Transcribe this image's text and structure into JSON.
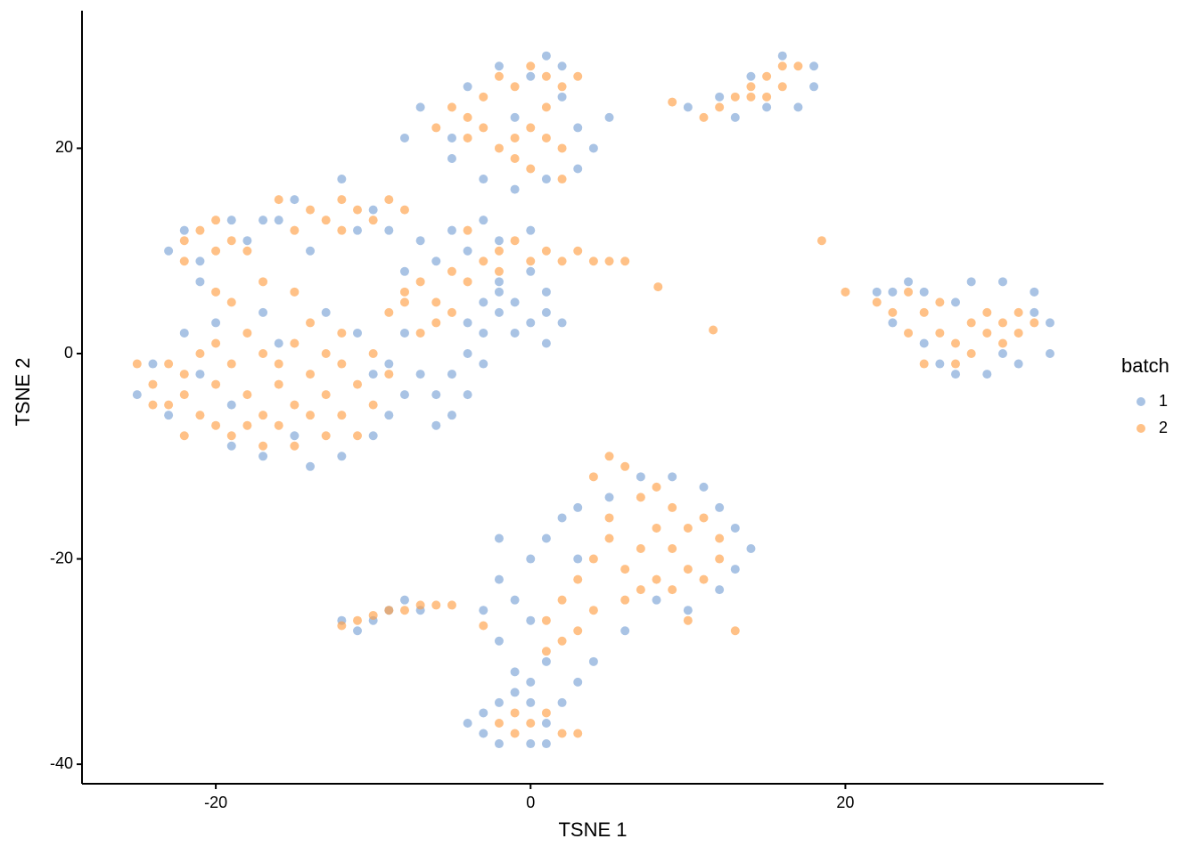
{
  "chart_data": {
    "type": "scatter",
    "x_label": "TSNE 1",
    "y_label": "TSNE 2",
    "legend_title": "batch",
    "legend": "right",
    "grid": false,
    "xlim": [
      -28.5,
      36.4
    ],
    "ylim": [
      -41.9,
      33.4
    ],
    "xticks": [
      -20,
      0,
      20
    ],
    "yticks": [
      -40,
      -20,
      0,
      20
    ],
    "series": [
      {
        "name": "1",
        "color": "#7ba3d6",
        "x": [
          -25,
          -24,
          -23,
          -22,
          -20,
          -19,
          -17,
          -14,
          -12,
          -10,
          -9,
          -8,
          -10,
          -11,
          -13,
          -17,
          -15,
          -19,
          -21,
          -16,
          -6,
          -5,
          -4,
          -3,
          -2,
          -1,
          0,
          1,
          1,
          -2,
          -1,
          -3,
          -4,
          -5,
          -6,
          -2,
          0,
          1,
          -7,
          -4,
          2,
          -3,
          -8,
          -9,
          -22,
          -21,
          -19,
          -23,
          -18,
          -17,
          -21,
          -15,
          -12,
          -11,
          -14,
          -10,
          -16,
          -9,
          -7,
          -5,
          -3,
          -6,
          -8,
          -4,
          -2,
          0,
          -7,
          -5,
          -4,
          -2,
          0,
          1,
          2,
          3,
          3,
          1,
          -1,
          -3,
          -5,
          -8,
          2,
          4,
          5,
          -1,
          12,
          14,
          16,
          18,
          17,
          15,
          13,
          18,
          10,
          22,
          23,
          24,
          25,
          26,
          27,
          28,
          30,
          32,
          33,
          33,
          31,
          29,
          25,
          27,
          32,
          23,
          30,
          -2,
          -2,
          -3,
          -2,
          -1,
          0,
          1,
          0,
          1,
          2,
          3,
          5,
          7,
          9,
          11,
          12,
          13,
          14,
          13,
          12,
          10,
          8,
          6,
          4,
          3,
          -1,
          0,
          3,
          -12,
          -11,
          -9,
          -8,
          -7,
          -10,
          -3,
          -4,
          -3,
          -2,
          0,
          1,
          2,
          -1,
          0,
          -2,
          1
        ],
        "values": [
          -4,
          -1,
          -6,
          2,
          3,
          -9,
          -10,
          -11,
          -10,
          -8,
          -6,
          -4,
          -2,
          2,
          4,
          4,
          -8,
          -5,
          -2,
          1,
          -4,
          -2,
          0,
          2,
          4,
          5,
          3,
          6,
          4,
          6,
          2,
          -1,
          -4,
          -6,
          -7,
          7,
          8,
          1,
          -2,
          3,
          3,
          5,
          2,
          -1,
          12,
          9,
          13,
          10,
          11,
          13,
          7,
          15,
          17,
          12,
          10,
          14,
          13,
          12,
          11,
          12,
          13,
          9,
          8,
          10,
          11,
          12,
          24,
          21,
          26,
          28,
          27,
          29,
          25,
          22,
          18,
          17,
          16,
          17,
          19,
          21,
          28,
          20,
          23,
          23,
          25,
          27,
          29,
          28,
          24,
          24,
          23,
          26,
          24,
          6,
          3,
          7,
          1,
          -1,
          -2,
          7,
          7,
          6,
          3,
          0,
          -1,
          -2,
          6,
          5,
          4,
          6,
          0,
          -18,
          -22,
          -25,
          -28,
          -31,
          -32,
          -30,
          -20,
          -18,
          -16,
          -15,
          -14,
          -12,
          -12,
          -13,
          -15,
          -17,
          -19,
          -21,
          -23,
          -25,
          -24,
          -27,
          -30,
          -32,
          -24,
          -26,
          -20,
          -26,
          -27,
          -25,
          -24,
          -25,
          -26,
          -35,
          -36,
          -37,
          -38,
          -38,
          -36,
          -34,
          -33,
          -34,
          -34,
          -38
        ]
      },
      {
        "name": "2",
        "color": "#ff9f47",
        "x": [
          -25,
          -24,
          -23,
          -22,
          -21,
          -20,
          -19,
          -18,
          -17,
          -16,
          -15,
          -14,
          -13,
          -12,
          -11,
          -10,
          -9,
          -13,
          -15,
          -17,
          -19,
          -17,
          -15,
          -13,
          -11,
          -20,
          -22,
          -23,
          -21,
          -18,
          -16,
          -14,
          -12,
          -18,
          -16,
          -14,
          -12,
          -10,
          -20,
          -22,
          -24,
          -19,
          -17,
          -20,
          -15,
          -22,
          -21,
          -20,
          -19,
          -22,
          -18,
          -20,
          -14,
          -13,
          -12,
          -11,
          -10,
          -15,
          -12,
          -9,
          -16,
          -8,
          -7,
          -6,
          -5,
          -4,
          -3,
          -2,
          -1,
          0,
          1,
          2,
          3,
          4,
          5,
          6,
          -8,
          -7,
          -6,
          -5,
          -4,
          -2,
          -8,
          -9,
          -6,
          -5,
          -4,
          -3,
          -2,
          -1,
          0,
          1,
          2,
          0,
          1,
          2,
          -1,
          0,
          -2,
          -1,
          1,
          3,
          -4,
          2,
          -3,
          12,
          13,
          14,
          15,
          16,
          17,
          15,
          14,
          11,
          16,
          20,
          22,
          23,
          24,
          25,
          26,
          27,
          28,
          29,
          30,
          31,
          32,
          27,
          25,
          26,
          29,
          31,
          24,
          28,
          30,
          18.5,
          11.6,
          8.1,
          9,
          4,
          5,
          6,
          7,
          8,
          9,
          10,
          11,
          12,
          12,
          11,
          10,
          9,
          8,
          7,
          6,
          5,
          4,
          3,
          2,
          1,
          2,
          1,
          3,
          4,
          6,
          8,
          10,
          13,
          7,
          5,
          9,
          -12,
          -11,
          -10,
          -9,
          -8,
          -7,
          -6,
          -5,
          -3,
          -2,
          -1,
          0,
          1,
          2,
          3,
          -1
        ],
        "values": [
          -1,
          -3,
          -1,
          -4,
          -6,
          -3,
          -1,
          -4,
          -6,
          -3,
          -5,
          -2,
          -4,
          -6,
          -3,
          -5,
          -2,
          0,
          1,
          0,
          -8,
          -9,
          -9,
          -8,
          -8,
          -7,
          -8,
          -5,
          0,
          2,
          -1,
          -6,
          -1,
          -7,
          -7,
          3,
          2,
          0,
          1,
          -2,
          -5,
          5,
          7,
          6,
          6,
          11,
          12,
          10,
          11,
          9,
          10,
          13,
          14,
          13,
          15,
          14,
          13,
          12,
          12,
          15,
          15,
          14,
          7,
          5,
          8,
          7,
          9,
          10,
          11,
          9,
          10,
          9,
          10,
          9,
          9,
          9,
          5,
          2,
          3,
          4,
          12,
          8,
          6,
          4,
          22,
          24,
          23,
          25,
          27,
          26,
          28,
          27,
          26,
          22,
          21,
          20,
          19,
          18,
          20,
          21,
          24,
          27,
          21,
          17,
          22,
          24,
          25,
          26,
          27,
          28,
          28,
          25,
          25,
          23,
          26,
          6,
          5,
          4,
          6,
          4,
          2,
          1,
          3,
          2,
          3,
          2,
          3,
          -1,
          -1,
          5,
          4,
          4,
          2,
          0,
          1,
          11,
          2.3,
          6.5,
          24.5,
          -12,
          -10,
          -11,
          -14,
          -13,
          -15,
          -17,
          -16,
          -18,
          -20,
          -22,
          -21,
          -19,
          -17,
          -19,
          -21,
          -18,
          -20,
          -22,
          -24,
          -26,
          -28,
          -29,
          -27,
          -25,
          -24,
          -22,
          -26,
          -27,
          -23,
          -16,
          -23,
          -26.5,
          -26,
          -25.5,
          -25,
          -25,
          -24.5,
          -24.5,
          -24.5,
          -26.5,
          -36,
          -35,
          -36,
          -35,
          -37,
          -37,
          -37
        ]
      }
    ]
  }
}
